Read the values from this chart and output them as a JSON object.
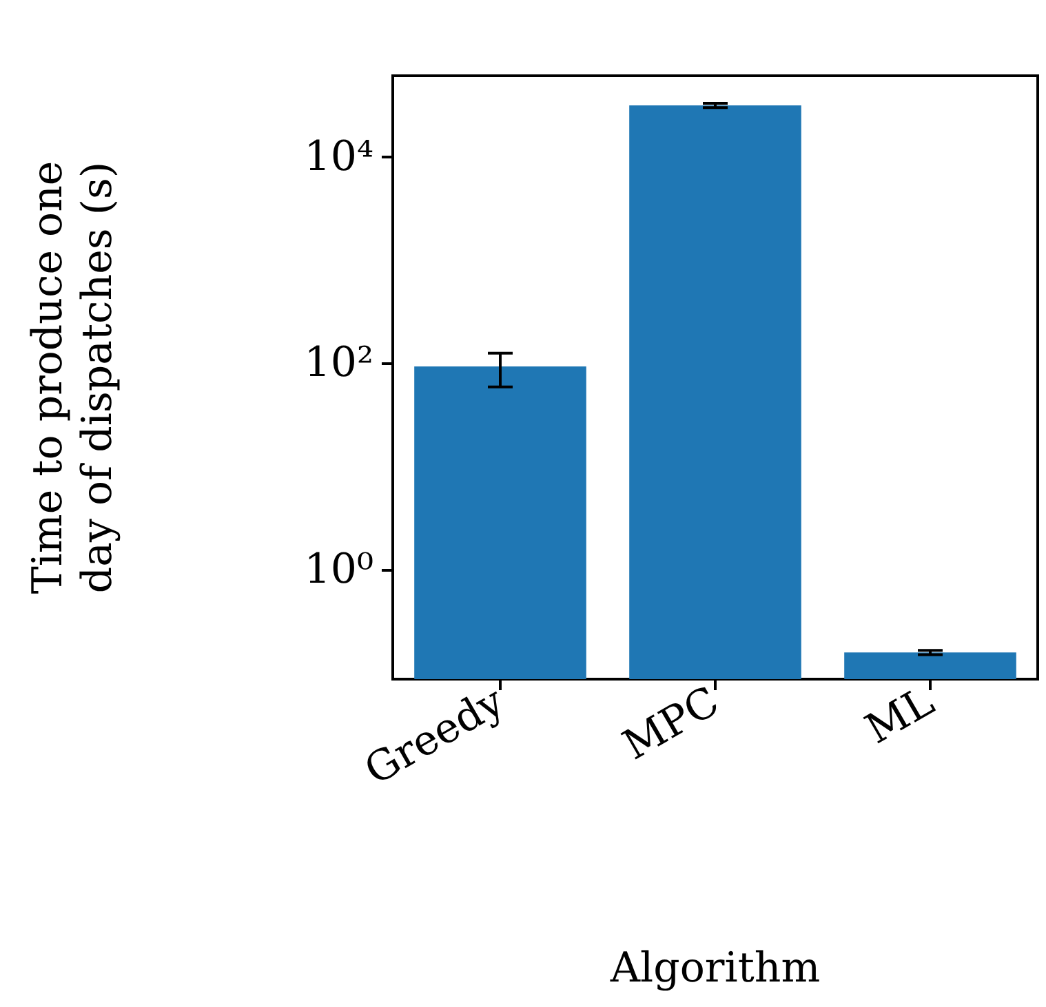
{
  "chart_data": {
    "type": "bar",
    "xlabel": "Algorithm",
    "ylabel": "Time to produce one\nday of dispatches (s)",
    "categories": [
      "Greedy",
      "MPC",
      "ML"
    ],
    "values": [
      93,
      31500,
      0.158
    ],
    "errors": [
      [
        59,
        125
      ],
      [
        30000,
        33000
      ],
      [
        0.15,
        0.165
      ]
    ],
    "color": "#1f77b4",
    "log": "y",
    "ylim": [
      0.087,
      61000
    ],
    "yticks": [
      {
        "value": 1,
        "label": "10⁰"
      },
      {
        "value": 100,
        "label": "10²"
      },
      {
        "value": 10000,
        "label": "10⁴"
      }
    ],
    "grid": false
  }
}
